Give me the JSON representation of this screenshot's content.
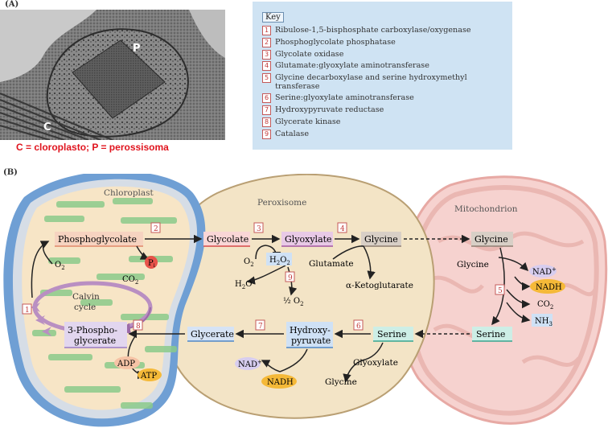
{
  "panels": {
    "a": "(A)",
    "b": "(B)"
  },
  "micrograph": {
    "label_p": "P",
    "label_c": "C"
  },
  "caption": "C = cloroplasto; P = perossisoma",
  "key": {
    "title": "Key",
    "items": [
      {
        "num": "1",
        "text": "Ribulose-1,5-bisphosphate carboxylase/oxygenase"
      },
      {
        "num": "2",
        "text": "Phosphoglycolate phosphatase"
      },
      {
        "num": "3",
        "text": "Glycolate oxidase"
      },
      {
        "num": "4",
        "text": "Glutamate:glyoxylate aminotransferase"
      },
      {
        "num": "5",
        "text": "Glycine decarboxylase and serine hydroxymethyl transferase"
      },
      {
        "num": "6",
        "text": "Serine:glyoxylate aminotransferase"
      },
      {
        "num": "7",
        "text": "Hydroxypyruvate reductase"
      },
      {
        "num": "8",
        "text": "Glycerate kinase"
      },
      {
        "num": "9",
        "text": "Catalase"
      }
    ]
  },
  "organelles": {
    "chloroplast": "Chloroplast",
    "peroxisome": "Peroxisome",
    "mitochondrion": "Mitochondrion"
  },
  "metabolites": {
    "phosphoglycolate": "Phosphoglycolate",
    "glycolate": "Glycolate",
    "glyoxylate": "Glyoxylate",
    "glycine_perox": "Glycine",
    "glycine_mito": "Glycine",
    "glycine_mito_in": "Glycine",
    "serine_mito": "Serine",
    "serine_perox": "Serine",
    "hydroxypyruvate_1": "Hydroxy-",
    "hydroxypyruvate_2": "pyruvate",
    "glycerate": "Glycerate",
    "pga_1": "3-Phospho-",
    "pga_2": "glycerate"
  },
  "cofactors": {
    "pi": "P",
    "pi_sub": "i",
    "o2_chloro": "O",
    "o2_perox": "O",
    "h2o2": "H",
    "h2o": "H",
    "half_o2": "½ O",
    "glutamate": "Glutamate",
    "akg": "α-Ketoglutarate",
    "co2_calvin": "CO",
    "nad_mito": "NAD",
    "nadh_mito": "NADH",
    "co2_mito": "CO",
    "nh3": "NH",
    "nh3_sub": "3",
    "nad_perox": "NAD",
    "nadh_perox": "NADH",
    "glyoxylate_in": "Glyoxylate",
    "glycine_out": "Glycine",
    "adp": "ADP",
    "atp": "ATP",
    "calvin_1": "Calvin",
    "calvin_2": "cycle",
    "sub_2": "2",
    "plus": "+"
  },
  "enzyme_numbers": {
    "e1": "1",
    "e2": "2",
    "e3": "3",
    "e4": "4",
    "e5": "5",
    "e6": "6",
    "e7": "7",
    "e8": "8",
    "e9": "9"
  },
  "colors": {
    "chloroplast_fill": "#f7e5c6",
    "chloroplast_border": "#6f9fd4",
    "peroxisome_fill": "#f3e4c6",
    "mitochondrion_fill": "#f6d2cf",
    "thylakoid": "#8bcb8b",
    "cycle": "#b98fc2",
    "caption": "#e0141e",
    "key_bg": "#cfe3f3"
  }
}
